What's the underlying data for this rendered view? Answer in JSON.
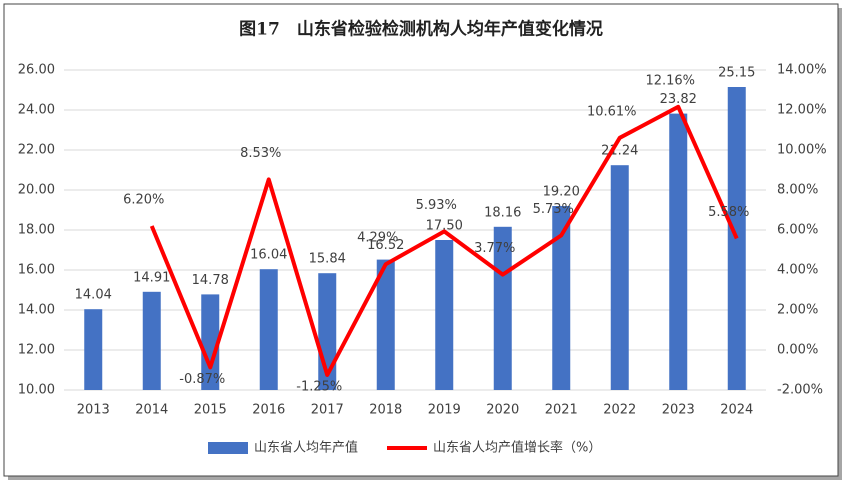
{
  "chart_data": {
    "type": "bar-line",
    "title": "图17　山东省检验检测机构人均年产值变化情况",
    "categories": [
      "2013",
      "2014",
      "2015",
      "2016",
      "2017",
      "2018",
      "2019",
      "2020",
      "2021",
      "2022",
      "2023",
      "2024"
    ],
    "series": [
      {
        "name": "山东省人均年产值",
        "color": "#4472c4",
        "type": "bar",
        "values": [
          14.04,
          14.91,
          14.78,
          16.04,
          15.84,
          16.52,
          17.5,
          18.16,
          19.2,
          21.24,
          23.82,
          25.15
        ],
        "value_labels": [
          "14.04",
          "14.91",
          "14.78",
          "16.04",
          "15.84",
          "16.52",
          "17.50",
          "18.16",
          "19.20",
          "21.24",
          "23.82",
          "25.15"
        ]
      },
      {
        "name": "山东省人均产值增长率（%）",
        "color": "#ff0000",
        "type": "line",
        "axis": "y2",
        "values": [
          null,
          6.2,
          -0.87,
          8.53,
          -1.25,
          4.29,
          5.93,
          3.77,
          5.73,
          10.61,
          12.16,
          5.58
        ],
        "value_labels": [
          null,
          "6.20%",
          "-0.87%",
          "8.53%",
          "-1.25%",
          "4.29%",
          "5.93%",
          "3.77%",
          "5.73%",
          "10.61%",
          "12.16%",
          "5.58%"
        ]
      }
    ],
    "ylim": [
      10,
      26
    ],
    "yticks": [
      {
        "value": 10,
        "label": "10.00"
      },
      {
        "value": 12,
        "label": "12.00"
      },
      {
        "value": 14,
        "label": "14.00"
      },
      {
        "value": 16,
        "label": "16.00"
      },
      {
        "value": 18,
        "label": "18.00"
      },
      {
        "value": 20,
        "label": "20.00"
      },
      {
        "value": 22,
        "label": "22.00"
      },
      {
        "value": 24,
        "label": "24.00"
      },
      {
        "value": 26,
        "label": "26.00"
      }
    ],
    "y2lim": [
      -2,
      14
    ],
    "y2ticks": [
      {
        "value": -2,
        "label": "-2.00%"
      },
      {
        "value": 0,
        "label": "0.00%"
      },
      {
        "value": 2,
        "label": "2.00%"
      },
      {
        "value": 4,
        "label": "4.00%"
      },
      {
        "value": 6,
        "label": "6.00%"
      },
      {
        "value": 8,
        "label": "8.00%"
      },
      {
        "value": 10,
        "label": "10.00%"
      },
      {
        "value": 12,
        "label": "12.00%"
      },
      {
        "value": 14,
        "label": "14.00%"
      }
    ],
    "grid": true
  }
}
